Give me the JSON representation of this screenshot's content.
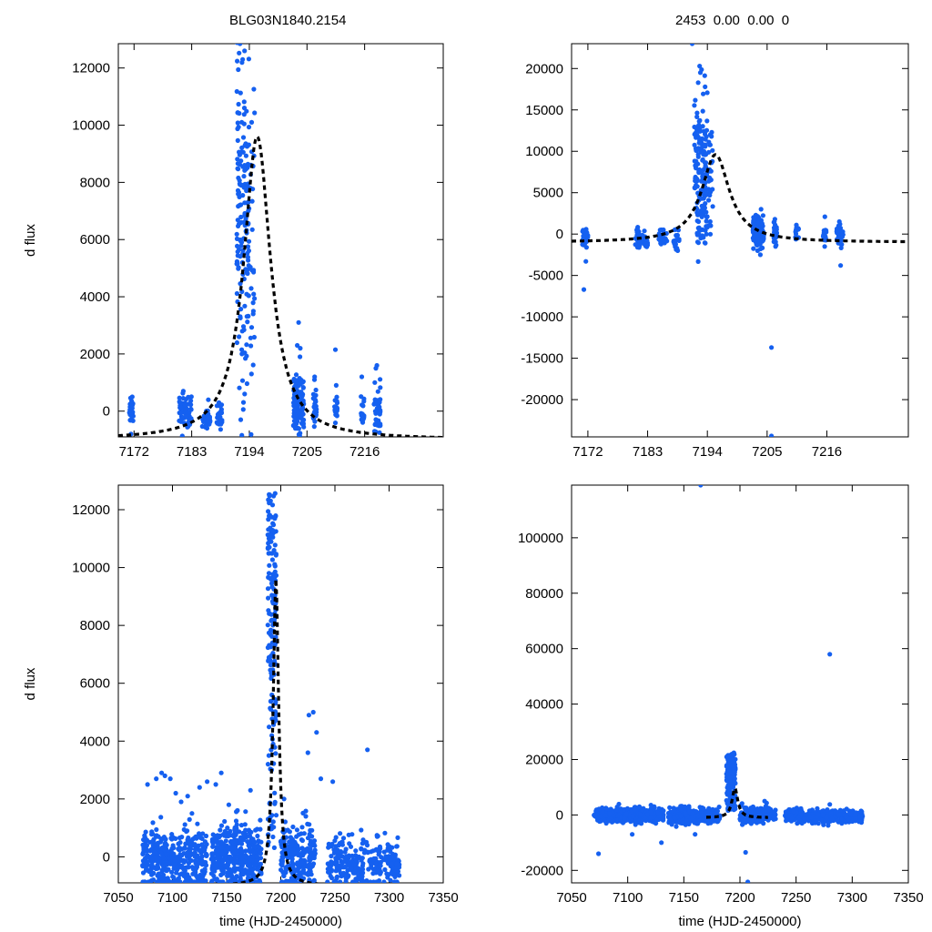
{
  "header": {
    "left_title": "BLG03N1840.2154",
    "right_title": "2453  0.00  0.00  0"
  },
  "colors": {
    "points": "#1560f0",
    "model": "#000000",
    "axis": "#000000"
  },
  "chart_data": [
    {
      "type": "scatter",
      "id": "top-left",
      "title": "BLG03N1840.2154",
      "xlabel": "",
      "ylabel": "d flux",
      "xlim": [
        7169,
        7231
      ],
      "ylim": [
        -900,
        12850
      ],
      "xticks": [
        7172,
        7183,
        7194,
        7205,
        7216
      ],
      "yticks": [
        0,
        2000,
        4000,
        6000,
        8000,
        10000,
        12000
      ],
      "model": {
        "t0": 7195.5,
        "peak": 9600,
        "fwhm": 6.2,
        "baseline": -1000
      },
      "clusters": [
        {
          "t": 7171.5,
          "width": 0.5,
          "n": 30,
          "base": 0,
          "spread": 200,
          "tail": [
            500,
            -800
          ]
        },
        {
          "t": 7181.8,
          "width": 1.2,
          "n": 60,
          "base": 0,
          "spread": 250,
          "tail": [
            700,
            -900
          ]
        },
        {
          "t": 7185.8,
          "width": 0.8,
          "n": 30,
          "base": -300,
          "spread": 200,
          "tail": [
            400
          ]
        },
        {
          "t": 7188.3,
          "width": 0.5,
          "n": 25,
          "base": -200,
          "spread": 250,
          "tail": [
            300
          ]
        },
        {
          "t": 7192.8,
          "width": 1.2,
          "n": 160,
          "base": 7000,
          "spread": 3000,
          "tail": [
            12600,
            12300,
            2800,
            2000,
            600,
            -300
          ]
        },
        {
          "t": 7194.6,
          "width": 0.4,
          "n": 25,
          "base": 6000,
          "spread": 3000,
          "tail": [
            10100,
            1300,
            3500,
            3400
          ]
        },
        {
          "t": 7203.4,
          "width": 1.0,
          "n": 140,
          "base": 200,
          "spread": 500,
          "tail": [
            3100,
            2300,
            2200,
            1900,
            -900
          ]
        },
        {
          "t": 7206.5,
          "width": 0.3,
          "n": 25,
          "base": 0,
          "spread": 350,
          "tail": [
            1200,
            1100
          ]
        },
        {
          "t": 7210.5,
          "width": 0.3,
          "n": 18,
          "base": 0,
          "spread": 300,
          "tail": [
            2150,
            900
          ]
        },
        {
          "t": 7215.6,
          "width": 0.3,
          "n": 18,
          "base": -100,
          "spread": 400,
          "tail": [
            1200
          ]
        },
        {
          "t": 7218.4,
          "width": 0.6,
          "n": 40,
          "base": 0,
          "spread": 450,
          "tail": [
            1600,
            1500
          ]
        }
      ]
    },
    {
      "type": "scatter",
      "id": "top-right",
      "title": "2453  0.00  0.00  0",
      "xlabel": "",
      "ylabel": "",
      "xlim": [
        7169,
        7231
      ],
      "ylim": [
        -24500,
        23000
      ],
      "xticks": [
        7172,
        7183,
        7194,
        7205,
        7216
      ],
      "yticks": [
        -20000,
        -15000,
        -10000,
        -5000,
        0,
        5000,
        10000,
        15000,
        20000
      ],
      "model": {
        "t0": 7195.5,
        "peak": 9600,
        "fwhm": 6.2,
        "baseline": -1000
      },
      "clusters": [
        {
          "t": 7171.5,
          "width": 0.5,
          "n": 30,
          "base": -500,
          "spread": 600,
          "tail": [
            -3300,
            -6700
          ]
        },
        {
          "t": 7181.8,
          "width": 1.2,
          "n": 50,
          "base": -500,
          "spread": 600,
          "tail": [
            -1500
          ]
        },
        {
          "t": 7185.8,
          "width": 0.8,
          "n": 25,
          "base": -500,
          "spread": 500,
          "tail": [
            -1200
          ]
        },
        {
          "t": 7188.3,
          "width": 0.5,
          "n": 20,
          "base": -800,
          "spread": 600,
          "tail": [
            -2000
          ]
        },
        {
          "t": 7192.8,
          "width": 1.2,
          "n": 160,
          "base": 8000,
          "spread": 4500,
          "tail": [
            19500,
            20300,
            2500,
            1500,
            -200,
            -500
          ]
        },
        {
          "t": 7194.6,
          "width": 0.4,
          "n": 25,
          "base": 7000,
          "spread": 3500,
          "tail": [
            12000,
            11800,
            1500
          ]
        },
        {
          "t": 7203.4,
          "width": 1.0,
          "n": 140,
          "base": 300,
          "spread": 800,
          "tail": [
            3000,
            2300,
            -2000,
            -2500,
            -1800
          ]
        },
        {
          "t": 7206.5,
          "width": 0.3,
          "n": 25,
          "base": 0,
          "spread": 700,
          "tail": [
            1800,
            -1500
          ]
        },
        {
          "t": 7210.5,
          "width": 0.3,
          "n": 18,
          "base": 300,
          "spread": 500,
          "tail": [
            1100
          ]
        },
        {
          "t": 7215.6,
          "width": 0.3,
          "n": 18,
          "base": -200,
          "spread": 500,
          "tail": [
            2100,
            -1500
          ]
        },
        {
          "t": 7218.4,
          "width": 0.6,
          "n": 40,
          "base": 0,
          "spread": 700,
          "tail": [
            1500,
            1200,
            -3800
          ]
        }
      ],
      "outliers": [
        [
          7191.2,
          23000
        ],
        [
          7205.8,
          -13700
        ],
        [
          7205.8,
          -24400
        ]
      ]
    },
    {
      "type": "scatter",
      "id": "bottom-left",
      "title": "",
      "xlabel": "time (HJD-2450000)",
      "ylabel": "d flux",
      "xlim": [
        7050,
        7350
      ],
      "ylim": [
        -900,
        12850
      ],
      "xticks": [
        7050,
        7100,
        7150,
        7200,
        7250,
        7300,
        7350
      ],
      "yticks": [
        0,
        2000,
        4000,
        6000,
        8000,
        10000,
        12000
      ],
      "model": {
        "t0": 7195.5,
        "peak": 9600,
        "fwhm": 6.2,
        "baseline": -1000
      },
      "segments": [
        {
          "from": 7072,
          "to": 7132,
          "n": 420,
          "base": -100,
          "spread": 500
        },
        {
          "from": 7136,
          "to": 7182,
          "n": 420,
          "base": 0,
          "spread": 550
        },
        {
          "from": 7200,
          "to": 7232,
          "n": 240,
          "base": 0,
          "spread": 550
        },
        {
          "from": 7243,
          "to": 7310,
          "n": 300,
          "base": -200,
          "spread": 450
        }
      ],
      "peak_column": {
        "from": 7188,
        "to": 7196,
        "n": 170,
        "min": 300,
        "max": 12600
      },
      "outliers": [
        [
          7077,
          2500
        ],
        [
          7085,
          2700
        ],
        [
          7090,
          2900
        ],
        [
          7093,
          2800
        ],
        [
          7098,
          2700
        ],
        [
          7103,
          2200
        ],
        [
          7108,
          1900
        ],
        [
          7114,
          2100
        ],
        [
          7118,
          1500
        ],
        [
          7125,
          2400
        ],
        [
          7132,
          2600
        ],
        [
          7140,
          2500
        ],
        [
          7145,
          2900
        ],
        [
          7152,
          1800
        ],
        [
          7160,
          1600
        ],
        [
          7172,
          2300
        ],
        [
          7203,
          2000
        ],
        [
          7226,
          4900
        ],
        [
          7230,
          5000
        ],
        [
          7233,
          4300
        ],
        [
          7237,
          2700
        ],
        [
          7248,
          2600
        ],
        [
          7280,
          3700
        ],
        [
          7225,
          3600
        ]
      ]
    },
    {
      "type": "scatter",
      "id": "bottom-right",
      "title": "",
      "xlabel": "time (HJD-2450000)",
      "ylabel": "",
      "xlim": [
        7050,
        7350
      ],
      "ylim": [
        -24500,
        119000
      ],
      "xticks": [
        7050,
        7100,
        7150,
        7200,
        7250,
        7300,
        7350
      ],
      "yticks": [
        -20000,
        0,
        20000,
        40000,
        60000,
        80000,
        100000
      ],
      "model": {
        "t0": 7195.5,
        "peak": 9600,
        "fwhm": 6.2,
        "baseline": -1000,
        "trange": [
          7170,
          7225
        ]
      },
      "segments": [
        {
          "from": 7070,
          "to": 7132,
          "n": 420,
          "base": 0,
          "spread": 1300
        },
        {
          "from": 7136,
          "to": 7182,
          "n": 380,
          "base": -300,
          "spread": 1400
        },
        {
          "from": 7200,
          "to": 7232,
          "n": 220,
          "base": 0,
          "spread": 1400
        },
        {
          "from": 7240,
          "to": 7310,
          "n": 300,
          "base": -500,
          "spread": 1300
        }
      ],
      "peak_column": {
        "from": 7188,
        "to": 7196,
        "n": 160,
        "min": 1500,
        "max": 22500
      },
      "outliers": [
        [
          7165,
          119000
        ],
        [
          7280,
          58000
        ],
        [
          7074,
          -14000
        ],
        [
          7130,
          -10000
        ],
        [
          7205,
          -13500
        ],
        [
          7207,
          -24200
        ],
        [
          7160,
          -7000
        ],
        [
          7222,
          5000
        ],
        [
          7280,
          3800
        ],
        [
          7104,
          -7000
        ]
      ]
    }
  ]
}
